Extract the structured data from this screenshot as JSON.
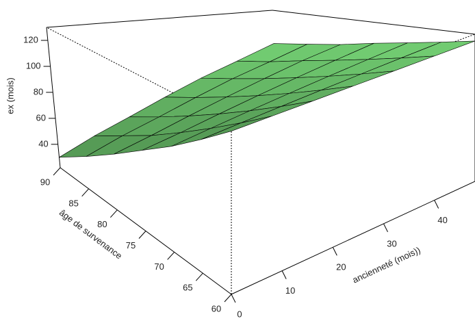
{
  "chart_data": {
    "type": "surface",
    "zlabel": "ex (mois)",
    "xlabel": "ancienneté (mois))",
    "ylabel": "âge de survenance",
    "x": [
      0,
      8,
      16,
      24,
      32,
      40,
      48
    ],
    "y": [
      60,
      65,
      70,
      75,
      80,
      85,
      90
    ],
    "z": [
      [
        125,
        125,
        125,
        125,
        125,
        125,
        125
      ],
      [
        109,
        111,
        113,
        115,
        117,
        119,
        121
      ],
      [
        93,
        97,
        101,
        105,
        109,
        113,
        117
      ],
      [
        78,
        83,
        89,
        95,
        101,
        107,
        113
      ],
      [
        62,
        69,
        77,
        85,
        93,
        101,
        108
      ],
      [
        46,
        56,
        65,
        75,
        85,
        94,
        104
      ],
      [
        30,
        42,
        53,
        65,
        77,
        88,
        100
      ]
    ],
    "xlim": [
      0,
      48
    ],
    "ylim": [
      60,
      90
    ],
    "zlim": [
      22,
      130
    ],
    "xticks": [
      0,
      10,
      20,
      30,
      40
    ],
    "yticks": [
      60,
      65,
      70,
      75,
      80,
      85,
      90
    ],
    "zticks": [
      40,
      60,
      80,
      100,
      120
    ],
    "color": "#78d878"
  }
}
